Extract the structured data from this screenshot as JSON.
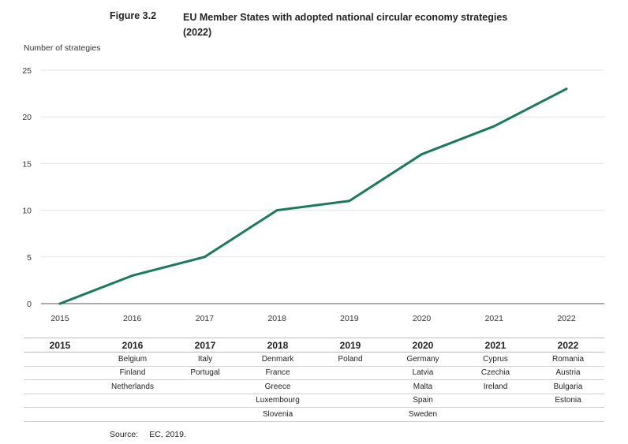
{
  "figure": {
    "number": "Figure 3.2",
    "title": "EU Member States with adopted national circular economy strategies (2022)"
  },
  "chart_data": {
    "type": "line",
    "title": "EU Member States with adopted national circular economy strategies (2022)",
    "ylabel": "Number of strategies",
    "xlabel": "",
    "x": [
      "2015",
      "2016",
      "2017",
      "2018",
      "2019",
      "2020",
      "2021",
      "2022"
    ],
    "series": [
      {
        "values": [
          0,
          3,
          5,
          10,
          11,
          16,
          19,
          23
        ]
      }
    ],
    "ylim": [
      0,
      25
    ],
    "yticks": [
      0,
      5,
      10,
      15,
      20,
      25
    ],
    "grid": true,
    "color": "#1b7a5e"
  },
  "table": {
    "headers": [
      "2015",
      "2016",
      "2017",
      "2018",
      "2019",
      "2020",
      "2021",
      "2022"
    ],
    "rows": [
      [
        "",
        "Belgium",
        "Italy",
        "Denmark",
        "Poland",
        "Germany",
        "Cyprus",
        "Romania"
      ],
      [
        "",
        "Finland",
        "Portugal",
        "France",
        "",
        "Latvia",
        "Czechia",
        "Austria"
      ],
      [
        "",
        "Netherlands",
        "",
        "Greece",
        "",
        "Malta",
        "Ireland",
        "Bulgaria"
      ],
      [
        "",
        "",
        "",
        "Luxembourg",
        "",
        "Spain",
        "",
        "Estonia"
      ],
      [
        "",
        "",
        "",
        "Slovenia",
        "",
        "Sweden",
        "",
        ""
      ]
    ]
  },
  "source": {
    "label": "Source:",
    "text": "EC, 2019."
  }
}
